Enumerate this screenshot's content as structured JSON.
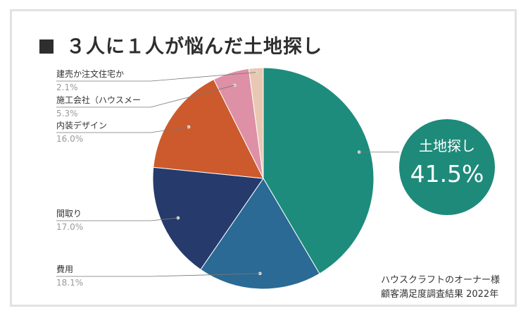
{
  "title": "３人に１人が悩んだ土地探し",
  "highlight": {
    "label": "土地探し",
    "value": "41.5%"
  },
  "source": {
    "line1": "ハウスクラフトのオーナー様",
    "line2": "顧客満足度調査結果  2022年"
  },
  "chart_data": {
    "type": "pie",
    "unit": "%",
    "slices": [
      {
        "label": "土地探し",
        "value": 41.5,
        "value_label": "41.5%",
        "color": "#1d8c7c"
      },
      {
        "label": "費用",
        "value": 18.1,
        "value_label": "18.1%",
        "color": "#2a6a94"
      },
      {
        "label": "間取り",
        "value": 17.0,
        "value_label": "17.0%",
        "color": "#263a6c"
      },
      {
        "label": "内装デザイン",
        "value": 16.0,
        "value_label": "16.0%",
        "color": "#cc5a2c"
      },
      {
        "label": "施工会社（ハウスメー",
        "value": 5.3,
        "value_label": "5.3%",
        "color": "#de90a6"
      },
      {
        "label": "建売か注文住宅か",
        "value": 2.1,
        "value_label": "2.1%",
        "color": "#e9c8b3"
      }
    ]
  }
}
